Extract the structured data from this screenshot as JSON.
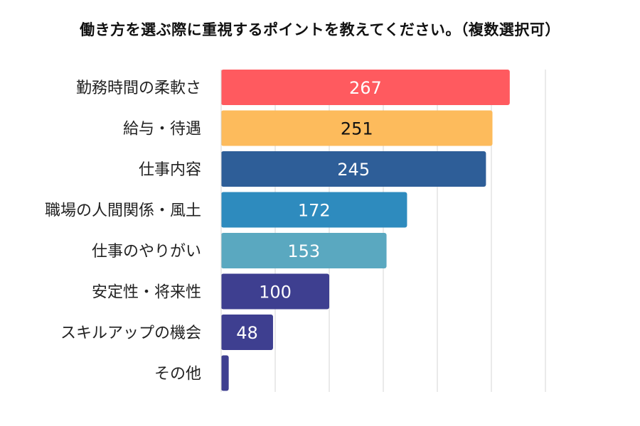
{
  "chart_data": {
    "type": "bar",
    "orientation": "horizontal",
    "title": "働き方を選ぶ際に重視するポイントを教えてください。（複数選択可）",
    "categories": [
      "勤務時間の柔軟さ",
      "給与・待遇",
      "仕事内容",
      "職場の人間関係・風土",
      "仕事のやりがい",
      "安定性・将来性",
      "スキルアップの機会",
      "その他"
    ],
    "values": [
      267,
      251,
      245,
      172,
      153,
      100,
      48,
      7
    ],
    "data_labels": [
      "267",
      "251",
      "245",
      "172",
      "153",
      "100",
      "48",
      ""
    ],
    "colors": [
      "#FF5A5F",
      "#FDBB5C",
      "#2E5E98",
      "#2E8BBE",
      "#5AA8C0",
      "#3E3F90",
      "#3E3F90",
      "#3E3F90"
    ],
    "label_colors": [
      "#ffffff",
      "#111111",
      "#ffffff",
      "#ffffff",
      "#ffffff",
      "#ffffff",
      "#ffffff",
      "#ffffff"
    ],
    "xlim": [
      0,
      300
    ],
    "grid_step": 50,
    "grid": true,
    "xlabel": "",
    "ylabel": ""
  }
}
